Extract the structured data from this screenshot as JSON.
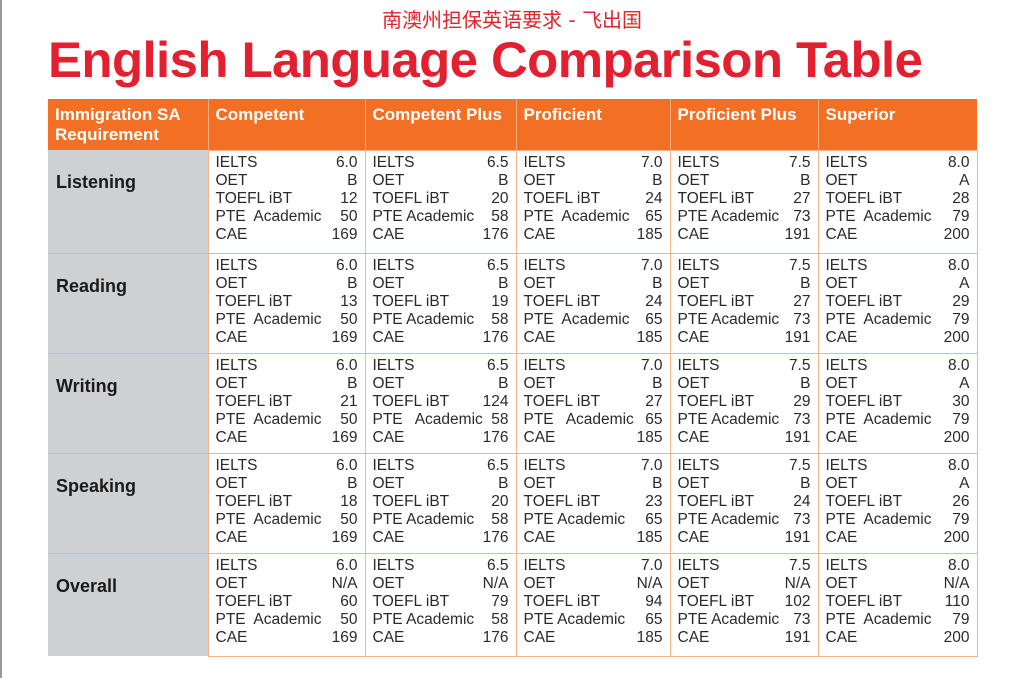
{
  "header": {
    "subtitle": "南澳州担保英语要求 - 飞出国",
    "title": "English Language Comparison Table"
  },
  "table": {
    "columns": [
      "Immigration SA Requirement",
      "Competent",
      "Competent Plus",
      "Proficient",
      "Proficient Plus",
      "Superior"
    ],
    "tests": [
      "IELTS",
      "OET",
      "TOEFL iBT",
      "PTE  Academic",
      "CAE"
    ],
    "rows": [
      {
        "label": "Listening",
        "cells": [
          [
            [
              "IELTS",
              "6.0"
            ],
            [
              "OET",
              "B"
            ],
            [
              "TOEFL iBT",
              "12"
            ],
            [
              "PTE  Academic",
              "50"
            ],
            [
              "CAE",
              "169"
            ]
          ],
          [
            [
              "IELTS",
              "6.5"
            ],
            [
              "OET",
              "B"
            ],
            [
              "TOEFL iBT",
              "20"
            ],
            [
              "PTE Academic",
              "58"
            ],
            [
              "CAE",
              "176"
            ]
          ],
          [
            [
              "IELTS",
              "7.0"
            ],
            [
              "OET",
              "B"
            ],
            [
              "TOEFL iBT",
              "24"
            ],
            [
              "PTE  Academic",
              "65"
            ],
            [
              "CAE",
              "185"
            ]
          ],
          [
            [
              "IELTS",
              "7.5"
            ],
            [
              "OET",
              "B"
            ],
            [
              "TOEFL iBT",
              "27"
            ],
            [
              "PTE Academic",
              "73"
            ],
            [
              "CAE",
              "191"
            ]
          ],
          [
            [
              "IELTS",
              "8.0"
            ],
            [
              "OET",
              "A"
            ],
            [
              "TOEFL iBT",
              "28"
            ],
            [
              "PTE  Academic",
              "79"
            ],
            [
              "CAE",
              "200"
            ]
          ]
        ]
      },
      {
        "label": "Reading",
        "cells": [
          [
            [
              "IELTS",
              "6.0"
            ],
            [
              "OET",
              "B"
            ],
            [
              "TOEFL iBT",
              "13"
            ],
            [
              "PTE  Academic",
              "50"
            ],
            [
              "CAE",
              "169"
            ]
          ],
          [
            [
              "IELTS",
              "6.5"
            ],
            [
              "OET",
              "B"
            ],
            [
              "TOEFL iBT",
              "19"
            ],
            [
              "PTE Academic",
              "58"
            ],
            [
              "CAE",
              "176"
            ]
          ],
          [
            [
              "IELTS",
              "7.0"
            ],
            [
              "OET",
              "B"
            ],
            [
              "TOEFL iBT",
              "24"
            ],
            [
              "PTE  Academic",
              "65"
            ],
            [
              "CAE",
              "185"
            ]
          ],
          [
            [
              "IELTS",
              "7.5"
            ],
            [
              "OET",
              "B"
            ],
            [
              "TOEFL iBT",
              "27"
            ],
            [
              "PTE Academic",
              "73"
            ],
            [
              "CAE",
              "191"
            ]
          ],
          [
            [
              "IELTS",
              "8.0"
            ],
            [
              "OET",
              "A"
            ],
            [
              "TOEFL iBT",
              "29"
            ],
            [
              "PTE  Academic",
              "79"
            ],
            [
              "CAE",
              "200"
            ]
          ]
        ]
      },
      {
        "label": "Writing",
        "cells": [
          [
            [
              "IELTS",
              "6.0"
            ],
            [
              "OET",
              "B"
            ],
            [
              "TOEFL iBT",
              "21"
            ],
            [
              "PTE  Academic",
              "50"
            ],
            [
              "CAE",
              "169"
            ]
          ],
          [
            [
              "IELTS",
              "6.5"
            ],
            [
              "OET",
              "B"
            ],
            [
              "TOEFL iBT",
              "124"
            ],
            [
              "PTE   Academic",
              "58"
            ],
            [
              "CAE",
              "176"
            ]
          ],
          [
            [
              "IELTS",
              "7.0"
            ],
            [
              "OET",
              "B"
            ],
            [
              "TOEFL iBT",
              "27"
            ],
            [
              "PTE   Academic",
              "65"
            ],
            [
              "CAE",
              "185"
            ]
          ],
          [
            [
              "IELTS",
              "7.5"
            ],
            [
              "OET",
              "B"
            ],
            [
              "TOEFL iBT",
              "29"
            ],
            [
              "PTE Academic",
              "73"
            ],
            [
              "CAE",
              "191"
            ]
          ],
          [
            [
              "IELTS",
              "8.0"
            ],
            [
              "OET",
              "A"
            ],
            [
              "TOEFL iBT",
              "30"
            ],
            [
              "PTE  Academic",
              "79"
            ],
            [
              "CAE",
              "200"
            ]
          ]
        ]
      },
      {
        "label": "Speaking",
        "cells": [
          [
            [
              "IELTS",
              "6.0"
            ],
            [
              "OET",
              "B"
            ],
            [
              "TOEFL iBT",
              "18"
            ],
            [
              "PTE  Academic",
              "50"
            ],
            [
              "CAE",
              "169"
            ]
          ],
          [
            [
              "IELTS",
              "6.5"
            ],
            [
              "OET",
              "B"
            ],
            [
              "TOEFL iBT",
              "20"
            ],
            [
              "PTE Academic",
              "58"
            ],
            [
              "CAE",
              "176"
            ]
          ],
          [
            [
              "IELTS",
              "7.0"
            ],
            [
              "OET",
              "B"
            ],
            [
              "TOEFL iBT",
              "23"
            ],
            [
              "PTE Academic",
              "65"
            ],
            [
              "CAE",
              "185"
            ]
          ],
          [
            [
              "IELTS",
              "7.5"
            ],
            [
              "OET",
              "B"
            ],
            [
              "TOEFL iBT",
              "24"
            ],
            [
              "PTE Academic",
              "73"
            ],
            [
              "CAE",
              "191"
            ]
          ],
          [
            [
              "IELTS",
              "8.0"
            ],
            [
              "OET",
              "A"
            ],
            [
              "TOEFL iBT",
              "26"
            ],
            [
              "PTE  Academic",
              "79"
            ],
            [
              "CAE",
              "200"
            ]
          ]
        ]
      },
      {
        "label": "Overall",
        "cells": [
          [
            [
              "IELTS",
              "6.0"
            ],
            [
              "OET",
              "N/A"
            ],
            [
              "TOEFL iBT",
              "60"
            ],
            [
              "PTE  Academic",
              "50"
            ],
            [
              "CAE",
              "169"
            ]
          ],
          [
            [
              "IELTS",
              "6.5"
            ],
            [
              "OET",
              "N/A"
            ],
            [
              "TOEFL iBT",
              "79"
            ],
            [
              "PTE Academic",
              "58"
            ],
            [
              "CAE",
              "176"
            ]
          ],
          [
            [
              "IELTS",
              "7.0"
            ],
            [
              "OET",
              "N/A"
            ],
            [
              "TOEFL iBT",
              "94"
            ],
            [
              "PTE Academic",
              "65"
            ],
            [
              "CAE",
              "185"
            ]
          ],
          [
            [
              "IELTS",
              "7.5"
            ],
            [
              "OET",
              "N/A"
            ],
            [
              "TOEFL iBT",
              "102"
            ],
            [
              "PTE Academic",
              "73"
            ],
            [
              "CAE",
              "191"
            ]
          ],
          [
            [
              "IELTS",
              "8.0"
            ],
            [
              "OET",
              "N/A"
            ],
            [
              "TOEFL iBT",
              "110"
            ],
            [
              "PTE  Academic",
              "79"
            ],
            [
              "CAE",
              "200"
            ]
          ]
        ]
      }
    ]
  },
  "colors": {
    "title_red": "#e32030",
    "header_orange": "#f26f23",
    "row_label_gray": "#cfd0d2",
    "cell_border": "#f2b48a"
  }
}
